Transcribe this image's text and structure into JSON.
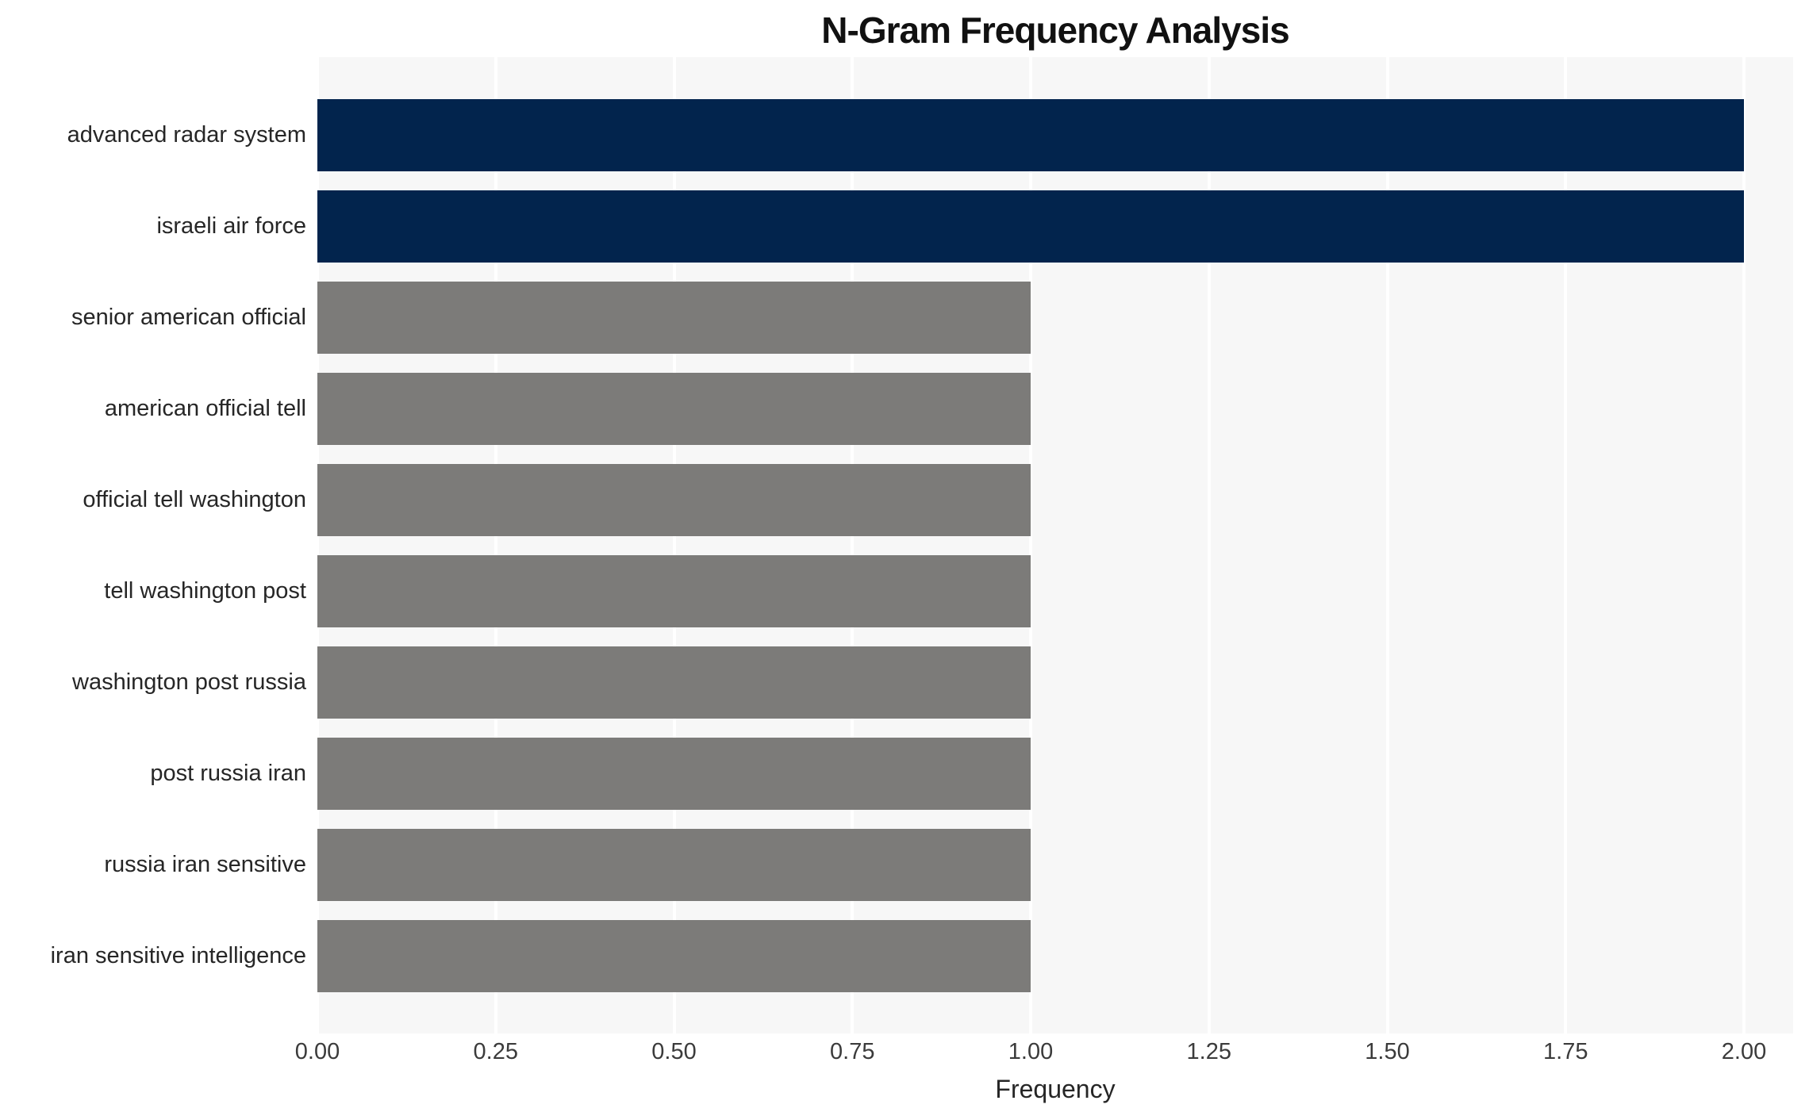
{
  "title": "N-Gram Frequency Analysis",
  "xlabel": "Frequency",
  "chart_data": {
    "type": "bar",
    "orientation": "horizontal",
    "title": "N-Gram Frequency Analysis",
    "xlabel": "Frequency",
    "ylabel": "",
    "categories": [
      "advanced radar system",
      "israeli air force",
      "senior american official",
      "american official tell",
      "official tell washington",
      "tell washington post",
      "washington post russia",
      "post russia iran",
      "russia iran sensitive",
      "iran sensitive intelligence"
    ],
    "values": [
      2,
      2,
      1,
      1,
      1,
      1,
      1,
      1,
      1,
      1
    ],
    "bar_colors": [
      "#02244d",
      "#02244d",
      "#7c7b79",
      "#7c7b79",
      "#7c7b79",
      "#7c7b79",
      "#7c7b79",
      "#7c7b79",
      "#7c7b79",
      "#7c7b79"
    ],
    "xticks": [
      "0.00",
      "0.25",
      "0.50",
      "0.75",
      "1.00",
      "1.25",
      "1.50",
      "1.75",
      "2.00"
    ],
    "xtick_values": [
      0,
      0.25,
      0.5,
      0.75,
      1.0,
      1.25,
      1.5,
      1.75,
      2.0
    ],
    "xlim": [
      0,
      2.07
    ],
    "grid": "vertical-white-gridlines",
    "legend": "none",
    "panel_background": "#f7f7f7",
    "gridline_color": "#ffffff"
  },
  "colors": {
    "navy": "#02244d",
    "gray": "#7c7b79",
    "panel_bg": "#f7f7f7",
    "grid": "#ffffff",
    "title_text": "#111111",
    "label_text": "#262626",
    "tick_text": "#3b3b3b"
  }
}
